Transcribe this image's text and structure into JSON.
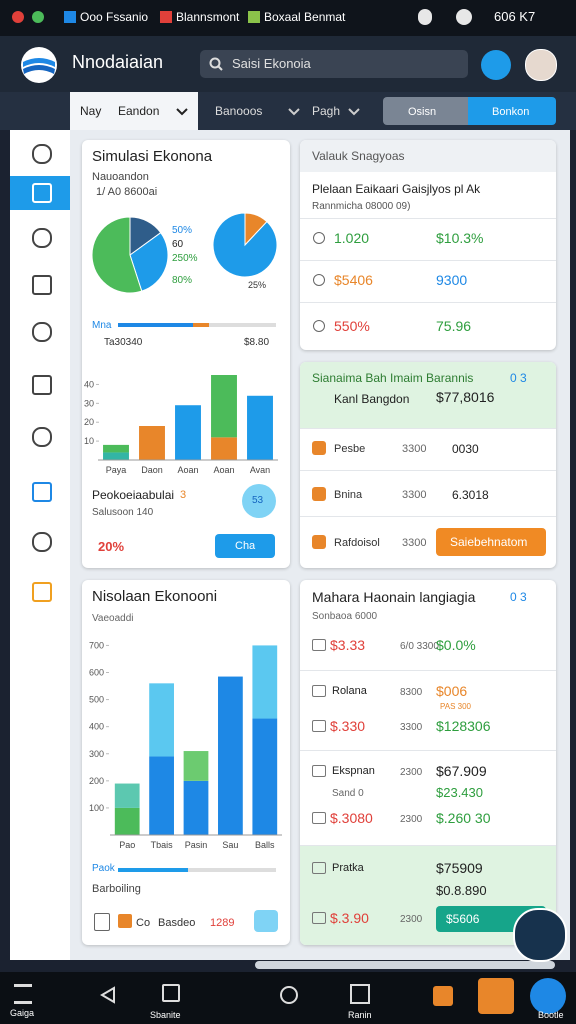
{
  "status_bar": {
    "apps": [
      "Ooo Fssanio",
      "Blannsmont",
      "Boxaal Benmat"
    ],
    "right": "606 K7"
  },
  "header": {
    "app_name": "Nnodaiaian",
    "search": "Saisi Ekonoia"
  },
  "tabs": {
    "items": [
      "Nay",
      "Eandon",
      "Banooos",
      "Pagh"
    ],
    "buttons": [
      "Osisn",
      "Bonkon"
    ]
  },
  "panel_sim": {
    "title": "Simulasi Ekonona",
    "subtitle": "Nauoandon",
    "meta": "1/ A0 8600ai",
    "pie_left": {
      "type": "pie",
      "values": [
        15,
        30,
        55
      ],
      "colors": [
        "#2f5d8a",
        "#1e9be9",
        "#4cbb5a"
      ]
    },
    "pie_legend": [
      "50%",
      "60",
      "250%",
      "80%"
    ],
    "pie_right": {
      "type": "pie",
      "values": [
        12,
        88
      ],
      "colors": [
        "#e8862a",
        "#1e9be9"
      ],
      "label": "25%"
    },
    "progress_label": "Mna",
    "summary": [
      "Ta30340",
      "$8.80"
    ],
    "bar_chart": {
      "type": "bar",
      "categories": [
        "Paya",
        "Daon",
        "Aoan",
        "Aoan",
        "Avan"
      ],
      "ylim": [
        0,
        45
      ],
      "yticks": [
        10,
        20,
        30,
        40
      ],
      "series": [
        {
          "colors": [
            "#33b5a5",
            "#e8862a",
            "#1e9be9",
            "#e8862a",
            "#1e9be9"
          ],
          "values": [
            4,
            18,
            29,
            12,
            34
          ]
        },
        {
          "colors": [
            "#4cbb5a",
            "#1e9be9",
            "#1e9be9",
            "#4cbb5a",
            "#1e9be9"
          ],
          "values": [
            4,
            0,
            0,
            33,
            0
          ]
        }
      ]
    },
    "footer": {
      "title": "Peokoeiaabulai",
      "badge": "3",
      "circle": "53",
      "subtitle": "Salusoon 140",
      "percent": "20%",
      "button": "Cha"
    }
  },
  "panel_rates": {
    "title": "Valauk Snagyoas",
    "heading": "Plelaan Eaikaari Gaisjlyos pl Ak",
    "subheading": "Rannmicha 08000 09)",
    "rows": [
      [
        "1.020",
        "$10.3%"
      ],
      [
        "$5406",
        "9300"
      ],
      [
        "550%",
        "75.96"
      ]
    ]
  },
  "panel_summary": {
    "title": "Sianaima Bah Imaim Barannis",
    "badge": "0 3",
    "lead": [
      "Kanl Bangdon",
      "$77,8016"
    ],
    "rows": [
      [
        "Pesbe",
        "3300",
        "0030"
      ],
      [
        "Bnina",
        "3300",
        "6.3018"
      ],
      [
        "Rafdoisol",
        "3300"
      ]
    ],
    "button": "Saiebehnatom"
  },
  "panel_chart": {
    "title": "Nisolaan Ekonooni",
    "subtitle": "Vaeoaddi",
    "bar_chart": {
      "type": "bar",
      "categories": [
        "Pao",
        "Tbais",
        "Pasin",
        "Sau",
        "Balls"
      ],
      "ylim": [
        0,
        720
      ],
      "yticks": [
        100,
        200,
        300,
        400,
        500,
        600,
        700
      ],
      "series": [
        {
          "colors": [
            "#4cbb5a",
            "#1e88e5",
            "#1e88e5",
            "#1e88e5",
            "#1e88e5"
          ],
          "values": [
            100,
            290,
            200,
            585,
            430
          ]
        },
        {
          "colors": [
            "#5cc8b0",
            "#5bc8f0",
            "#6ccb70",
            "#5bc8f0",
            "#5bc8f0"
          ],
          "values": [
            90,
            270,
            110,
            0,
            270
          ]
        }
      ]
    },
    "progress_label": "Paok",
    "footer_title": "Barboiling",
    "footer": [
      "Co",
      "Basdeo",
      "1289"
    ]
  },
  "panel_list": {
    "title": "Mahara Haonain langiagia",
    "badge": "0 3",
    "subtitle": "Sonbaoa 6000",
    "rows": [
      [
        "$3.33",
        "6/0 3300",
        "$0.0%"
      ],
      [
        "Rolana",
        "8300",
        "$006",
        "PAS 300"
      ],
      [
        "$.330",
        "3300",
        "$128306"
      ],
      [
        "Ekspnan",
        "2300",
        "$67.909",
        "Sand 0",
        "$23.430"
      ],
      [
        "$.3080",
        "2300",
        "$.260 30"
      ],
      [
        "Pratka",
        "$75909",
        "$0.8.890"
      ],
      [
        "$.3.90",
        "2300",
        "$5606"
      ]
    ]
  },
  "bottom_nav": [
    "Gaiga",
    "Sbanite",
    "Ranin",
    "Bootle"
  ]
}
